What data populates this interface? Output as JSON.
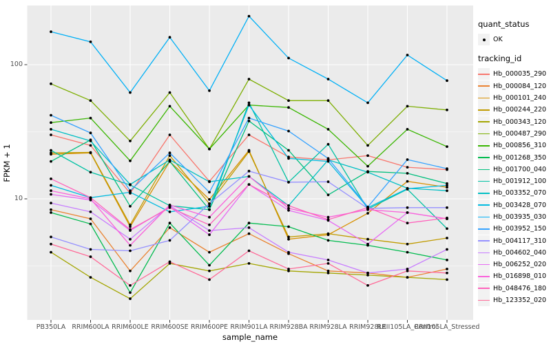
{
  "figure": {
    "panel_background": "#EBEBEB",
    "grid_color": "#FFFFFF",
    "point_color": "#000000",
    "tick_color": "#333333",
    "tick_label_color": "#4D4D4D",
    "legend_key_fill": "#F2F2F2"
  },
  "chart_data": {
    "type": "line",
    "title": "",
    "x_axis": {
      "label": "sample_name",
      "categories": [
        "PB350LA",
        "RRIM600LA",
        "RRIM600LE",
        "RRIM600SE",
        "RRIM600PE",
        "RRIM901LA",
        "RRIM928BA",
        "RRIM928LA",
        "RRIM928LE",
        "RRII105LA_Control",
        "RRII105LA_Stressed"
      ]
    },
    "y_axis": {
      "label": "FPKM + 1",
      "scale": "log10",
      "tick_labels": [
        "100",
        "10"
      ],
      "tick_values": [
        100,
        10
      ],
      "minor_grid_values": [
        31.623,
        3.1623
      ],
      "range_approx": [
        1.5,
        280
      ]
    },
    "grid": true,
    "legend_position": "right",
    "points": {
      "shape": "circle",
      "color": "#000000"
    },
    "series": [
      {
        "name": "Hb_000035_290",
        "color": "#F8766D",
        "values": [
          30,
          25,
          11,
          30,
          13.5,
          30,
          20.5,
          19.5,
          21,
          17.2,
          16.5
        ]
      },
      {
        "name": "Hb_000084_120",
        "color": "#EA8331",
        "values": [
          8.3,
          7.1,
          2.9,
          6.1,
          4.0,
          5.5,
          3.9,
          2.9,
          2.8,
          2.6,
          3.0
        ]
      },
      {
        "name": "Hb_000101_240",
        "color": "#D89000",
        "values": [
          21.5,
          22,
          6.2,
          19,
          9.9,
          23,
          5.0,
          5.4,
          7.8,
          13.5,
          12.2
        ]
      },
      {
        "name": "Hb_000244_220",
        "color": "#C09B00",
        "values": [
          22,
          22.2,
          6.4,
          21,
          9.2,
          22.5,
          5.2,
          5.5,
          5.0,
          4.6,
          5.1
        ]
      },
      {
        "name": "Hb_000343_120",
        "color": "#A3A500",
        "values": [
          4.0,
          2.6,
          1.8,
          3.3,
          2.9,
          3.3,
          2.9,
          2.8,
          2.7,
          2.6,
          2.5
        ]
      },
      {
        "name": "Hb_000487_290",
        "color": "#7CAE00",
        "values": [
          72,
          54,
          27,
          62,
          23.5,
          78,
          54,
          54,
          25,
          49,
          46
        ]
      },
      {
        "name": "Hb_000856_310",
        "color": "#39B600",
        "values": [
          37,
          40,
          19.2,
          49,
          23.5,
          50,
          48,
          33,
          17.5,
          33,
          24.5
        ]
      },
      {
        "name": "Hb_001268_350",
        "color": "#00BB4E",
        "values": [
          7.9,
          6.5,
          2.0,
          6.6,
          3.2,
          6.6,
          6.2,
          4.9,
          4.5,
          4.0,
          3.5
        ]
      },
      {
        "name": "Hb_001700_040",
        "color": "#00BF7D",
        "values": [
          19,
          27.5,
          8.8,
          19,
          8.3,
          38,
          23,
          10.7,
          16,
          15.5,
          13
        ]
      },
      {
        "name": "Hb_001912_100",
        "color": "#00C1A3",
        "values": [
          23,
          15.8,
          12.7,
          8.9,
          8.3,
          52,
          13.3,
          25.5,
          8.4,
          11.8,
          6.0
        ]
      },
      {
        "name": "Hb_003352_070",
        "color": "#00BFC4",
        "values": [
          33,
          27,
          12.8,
          19.5,
          13.4,
          14.7,
          8.9,
          19.5,
          15.8,
          12.0,
          11.5
        ]
      },
      {
        "name": "Hb_003428_070",
        "color": "#00BAE0",
        "values": [
          12.6,
          10.2,
          11.2,
          8.0,
          8.8,
          50,
          20,
          19,
          8.6,
          11.9,
          12.6
        ]
      },
      {
        "name": "Hb_003935_030",
        "color": "#00B0F6",
        "values": [
          176,
          148,
          62,
          160,
          64,
          230,
          112,
          78,
          52,
          118,
          76
        ]
      },
      {
        "name": "Hb_003952_150",
        "color": "#35A2FF",
        "values": [
          42,
          31,
          11.5,
          22,
          11.2,
          40,
          32,
          20,
          8.7,
          19.6,
          16.8
        ]
      },
      {
        "name": "Hb_004117_310",
        "color": "#9590FF",
        "values": [
          5.2,
          4.2,
          4.1,
          4.9,
          9.2,
          16.1,
          13.3,
          13.4,
          8.5,
          8.6,
          8.6
        ]
      },
      {
        "name": "Hb_004602_040",
        "color": "#C77CFF",
        "values": [
          9.3,
          8.0,
          5.0,
          8.9,
          5.8,
          6.1,
          4.0,
          3.5,
          2.8,
          3.0,
          4.2
        ]
      },
      {
        "name": "Hb_006252_020",
        "color": "#E76BF3",
        "values": [
          10.8,
          9.8,
          5.8,
          8.7,
          5.4,
          12.8,
          8.2,
          6.9,
          4.6,
          7.9,
          7.1
        ]
      },
      {
        "name": "Hb_016898_010",
        "color": "#FA62DB",
        "values": [
          11.5,
          10.0,
          4.5,
          9.0,
          7.3,
          14.7,
          8.5,
          7.3,
          8.3,
          7.9,
          7.1
        ]
      },
      {
        "name": "Hb_048476_180",
        "color": "#FF62BC",
        "values": [
          14.1,
          10.2,
          5.9,
          8.6,
          6.4,
          12.8,
          8.9,
          7.0,
          8.6,
          6.6,
          7.2
        ]
      },
      {
        "name": "Hb_123352_020",
        "color": "#FF6A98",
        "values": [
          4.6,
          3.7,
          2.26,
          3.4,
          2.5,
          4.1,
          3.0,
          3.3,
          2.26,
          2.9,
          2.8
        ]
      }
    ]
  },
  "legend": {
    "quant_status": {
      "title": "quant_status",
      "items": [
        {
          "label": "OK",
          "key": "point"
        }
      ]
    },
    "tracking_id": {
      "title": "tracking_id"
    }
  },
  "axes": {
    "x_title": "sample_name",
    "y_title": "FPKM + 1"
  }
}
